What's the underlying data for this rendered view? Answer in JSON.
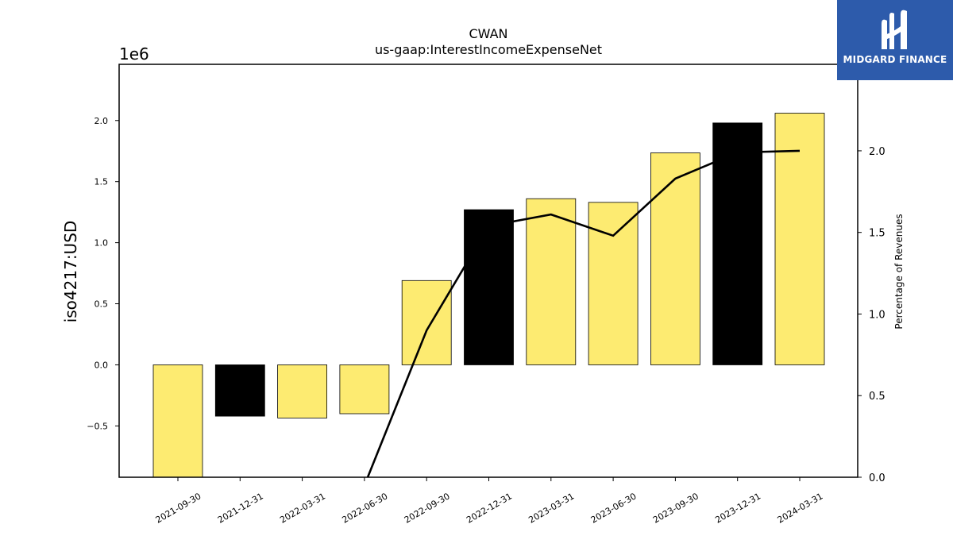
{
  "chart_data": {
    "type": "bar+line",
    "title": "CWAN",
    "subtitle": "us-gaap:InterestIncomeExpenseNet",
    "ylabel": "iso4217:USD",
    "y_offset_label": "1e6",
    "y2label": "Percentage of Revenues",
    "categories": [
      "2021-09-30",
      "2021-12-31",
      "2022-03-31",
      "2022-06-30",
      "2022-09-30",
      "2022-12-31",
      "2023-03-31",
      "2023-06-30",
      "2023-09-30",
      "2023-12-31",
      "2024-03-31"
    ],
    "bars": {
      "values": [
        -0.92,
        -0.42,
        -0.435,
        -0.4,
        0.69,
        1.27,
        1.36,
        1.33,
        1.735,
        1.98,
        2.06
      ],
      "colors": [
        "#fdeb71",
        "#000000",
        "#fdeb71",
        "#fdeb71",
        "#fdeb71",
        "#000000",
        "#fdeb71",
        "#fdeb71",
        "#fdeb71",
        "#000000",
        "#fdeb71"
      ]
    },
    "line": {
      "values": [
        null,
        null,
        null,
        -0.05,
        0.9,
        1.54,
        1.61,
        1.48,
        1.83,
        1.99,
        2.0
      ]
    },
    "ylim": [
      -0.92,
      2.46
    ],
    "y2lim": [
      0.0,
      2.53
    ],
    "yticks": [
      -0.5,
      0.0,
      0.5,
      1.0,
      1.5,
      2.0
    ],
    "ytick_labels": [
      "−0.5",
      "0.0",
      "0.5",
      "1.0",
      "1.5",
      "2.0"
    ],
    "y2ticks": [
      0.0,
      0.5,
      1.0,
      1.5,
      2.0
    ],
    "y2tick_labels": [
      "0.0",
      "0.5",
      "1.0",
      "1.5",
      "2.0"
    ],
    "grid": false,
    "legend": "none"
  },
  "logo": {
    "text": "MIDGARD FINANCE",
    "icon": "mf-monogram-icon",
    "color": "#2d5bab"
  }
}
